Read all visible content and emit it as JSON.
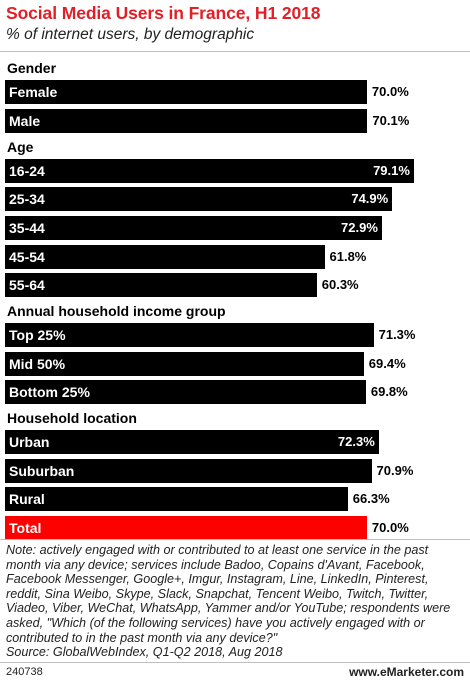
{
  "header": {
    "title": "Social Media Users in France, H1 2018",
    "subtitle": "% of internet users, by demographic"
  },
  "chart_data": {
    "type": "bar",
    "orientation": "horizontal",
    "title": "Social Media Users in France, H1 2018",
    "subtitle": "% of internet users, by demographic",
    "xlim": [
      0,
      90
    ],
    "unit": "%",
    "grid": false,
    "bar_color": "#000000",
    "highlight_color": "#ff0000",
    "groups": [
      {
        "name": "Gender",
        "bars": [
          {
            "label": "Female",
            "value": 70.0,
            "value_label": "70.0%"
          },
          {
            "label": "Male",
            "value": 70.1,
            "value_label": "70.1%"
          }
        ]
      },
      {
        "name": "Age",
        "bars": [
          {
            "label": "16-24",
            "value": 79.1,
            "value_label": "79.1%"
          },
          {
            "label": "25-34",
            "value": 74.9,
            "value_label": "74.9%"
          },
          {
            "label": "35-44",
            "value": 72.9,
            "value_label": "72.9%"
          },
          {
            "label": "45-54",
            "value": 61.8,
            "value_label": "61.8%"
          },
          {
            "label": "55-64",
            "value": 60.3,
            "value_label": "60.3%"
          }
        ]
      },
      {
        "name": "Annual household income group",
        "bars": [
          {
            "label": "Top 25%",
            "value": 71.3,
            "value_label": "71.3%"
          },
          {
            "label": "Mid 50%",
            "value": 69.4,
            "value_label": "69.4%"
          },
          {
            "label": "Bottom 25%",
            "value": 69.8,
            "value_label": "69.8%"
          }
        ]
      },
      {
        "name": "Household location",
        "bars": [
          {
            "label": "Urban",
            "value": 72.3,
            "value_label": "72.3%"
          },
          {
            "label": "Suburban",
            "value": 70.9,
            "value_label": "70.9%"
          },
          {
            "label": "Rural",
            "value": 66.3,
            "value_label": "66.3%"
          },
          {
            "label": "Total",
            "value": 70.0,
            "value_label": "70.0%",
            "highlight": true
          }
        ]
      }
    ]
  },
  "footer": {
    "note": "Note: actively engaged with or contributed to at least one service in the past month via any device; services include Badoo, Copains d'Avant, Facebook, Facebook Messenger, Google+, Imgur, Instagram, Line, LinkedIn, Pinterest, reddit, Sina Weibo, Skype, Slack, Snapchat, Tencent Weibo, Twitch, Twitter, Viadeo, Viber, WeChat, WhatsApp, Yammer and/or YouTube; respondents were asked, \"Which (of the following services) have you actively engaged with or contributed to in the past month via any device?\"",
    "source": "Source: GlobalWebIndex, Q1-Q2 2018, Aug 2018",
    "chart_id": "240738",
    "brand": "www.eMarketer.com"
  }
}
